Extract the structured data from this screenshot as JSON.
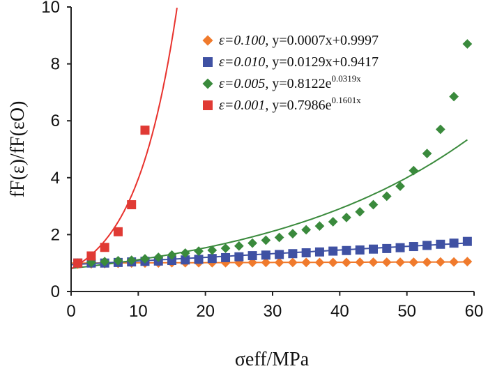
{
  "chart_data": {
    "type": "scatter",
    "xlabel": "σeff/MPa",
    "ylabel": "fF(ε)/fF(εO)",
    "xlim": [
      0,
      60
    ],
    "ylim": [
      0,
      10
    ],
    "xticks": [
      "0",
      "10",
      "20",
      "30",
      "40",
      "50",
      "60"
    ],
    "yticks": [
      "0",
      "2",
      "4",
      "6",
      "8",
      "10"
    ],
    "legend_position": "top-right",
    "series": [
      {
        "name": "ε=0.100, y=0.0007x+0.9997",
        "legend_eps": "ε=0.100, ",
        "legend_fit": "y=0.0007x+0.9997",
        "marker": "diamond",
        "color": "#f07a2c",
        "line_color": "#f07a2c",
        "fit": {
          "kind": "linear",
          "a": 0.0007,
          "b": 0.9997,
          "x_range": [
            0,
            59
          ]
        },
        "x": [
          1,
          3,
          5,
          7,
          9,
          11,
          13,
          15,
          17,
          19,
          21,
          23,
          25,
          27,
          29,
          31,
          33,
          35,
          37,
          39,
          41,
          43,
          45,
          47,
          49,
          51,
          53,
          55,
          57,
          59
        ],
        "y": [
          0.96,
          0.97,
          0.98,
          0.99,
          1.0,
          1.0,
          1.0,
          1.01,
          1.01,
          1.01,
          1.01,
          1.01,
          1.01,
          1.02,
          1.02,
          1.02,
          1.02,
          1.02,
          1.02,
          1.02,
          1.02,
          1.03,
          1.03,
          1.03,
          1.03,
          1.03,
          1.03,
          1.04,
          1.04,
          1.05
        ]
      },
      {
        "name": "ε=0.010, y=0.0129x+0.9417",
        "legend_eps": "ε=0.010, ",
        "legend_fit": "y=0.0129x+0.9417",
        "marker": "square",
        "color": "#3f51a3",
        "line_color": "#3f51a3",
        "fit": {
          "kind": "linear",
          "a": 0.0129,
          "b": 0.9417,
          "x_range": [
            0,
            59
          ]
        },
        "x": [
          1,
          3,
          5,
          7,
          9,
          11,
          13,
          15,
          17,
          19,
          21,
          23,
          25,
          27,
          29,
          31,
          33,
          35,
          37,
          39,
          41,
          43,
          45,
          47,
          49,
          51,
          53,
          55,
          57,
          59
        ],
        "y": [
          1.0,
          1.0,
          1.0,
          1.02,
          1.04,
          1.06,
          1.07,
          1.09,
          1.11,
          1.13,
          1.16,
          1.19,
          1.22,
          1.26,
          1.28,
          1.3,
          1.33,
          1.36,
          1.39,
          1.42,
          1.44,
          1.46,
          1.49,
          1.51,
          1.54,
          1.58,
          1.62,
          1.66,
          1.7,
          1.76
        ]
      },
      {
        "name": "ε=0.005, y=0.8122e^0.0319x",
        "legend_eps": "ε=0.005, ",
        "legend_fit_base": "y=0.8122e",
        "legend_fit_exp": "0.0319x",
        "marker": "diamond",
        "color": "#3a8a3c",
        "line_color": "#3a8a3c",
        "fit": {
          "kind": "exponential",
          "a": 0.8122,
          "b": 0.0319,
          "x_range": [
            0,
            59
          ]
        },
        "x": [
          1,
          3,
          5,
          7,
          9,
          11,
          13,
          15,
          17,
          19,
          21,
          23,
          25,
          27,
          29,
          31,
          33,
          35,
          37,
          39,
          41,
          43,
          45,
          47,
          49,
          51,
          53,
          55,
          57,
          59
        ],
        "y": [
          1.0,
          1.02,
          1.05,
          1.08,
          1.1,
          1.15,
          1.2,
          1.28,
          1.35,
          1.42,
          1.45,
          1.52,
          1.6,
          1.7,
          1.8,
          1.9,
          2.03,
          2.17,
          2.3,
          2.45,
          2.6,
          2.8,
          3.05,
          3.35,
          3.7,
          4.25,
          4.85,
          5.7,
          6.85,
          8.7
        ]
      },
      {
        "name": "ε=0.001, y=0.7986e^0.1601x",
        "legend_eps": "ε=0.001, ",
        "legend_fit_base": "y=0.7986e",
        "legend_fit_exp": "0.1601x",
        "marker": "square",
        "color": "#e03a34",
        "line_color": "#e8322d",
        "fit": {
          "kind": "exponential",
          "a": 0.7986,
          "b": 0.1601,
          "x_range": [
            0,
            15.77
          ]
        },
        "x": [
          1,
          3,
          5,
          7,
          9,
          11
        ],
        "y": [
          1.0,
          1.25,
          1.55,
          2.1,
          3.05,
          5.67
        ]
      }
    ]
  }
}
